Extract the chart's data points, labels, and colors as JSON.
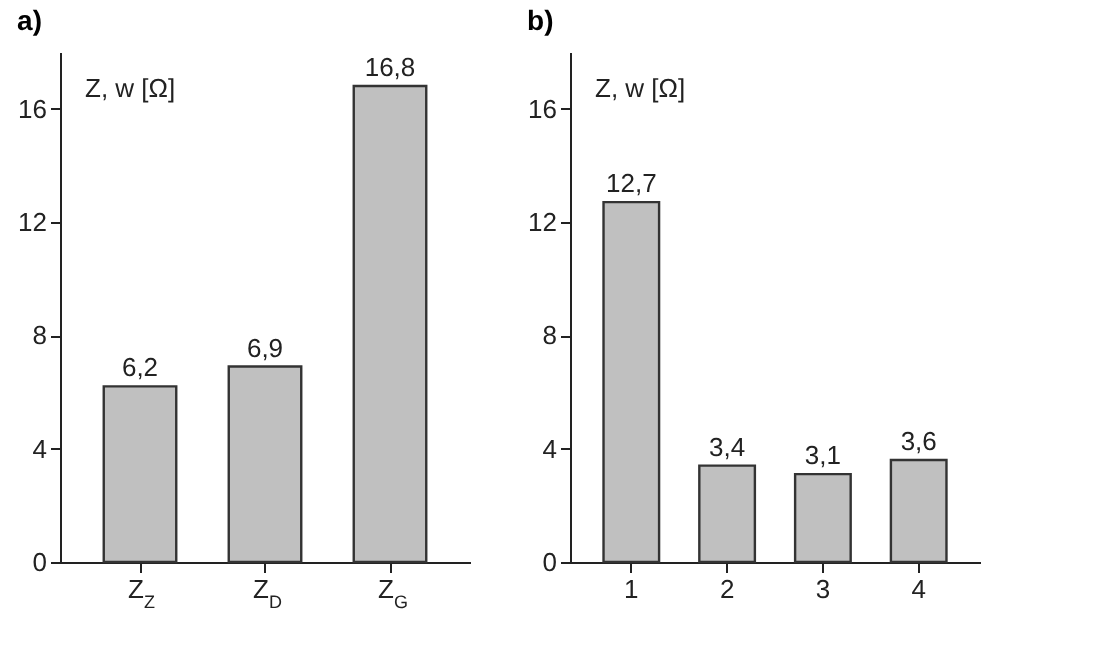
{
  "chart_data": [
    {
      "type": "bar",
      "title": "a)",
      "ylabel": "Z, w [Ω]",
      "categories": [
        "Z$_{Z}$",
        "Z$_{D}$",
        "Z$_{G}$"
      ],
      "values": [
        6.2,
        6.9,
        16.8
      ],
      "value_labels": [
        "6,2",
        "6,9",
        "16,8"
      ],
      "color": "#c0c0c0",
      "ylim": [
        0,
        18
      ],
      "yticks": [
        0,
        4,
        8,
        12,
        16
      ]
    },
    {
      "type": "bar",
      "title": "b)",
      "ylabel": "Z, w [Ω]",
      "categories": [
        "1",
        "2",
        "3",
        "4"
      ],
      "values": [
        12.7,
        3.4,
        3.1,
        3.6
      ],
      "value_labels": [
        "12,7",
        "3,4",
        "3,1",
        "3,6"
      ],
      "color": "#c0c0c0",
      "ylim": [
        0,
        18
      ],
      "yticks": [
        0,
        4,
        8,
        12,
        16
      ]
    }
  ]
}
